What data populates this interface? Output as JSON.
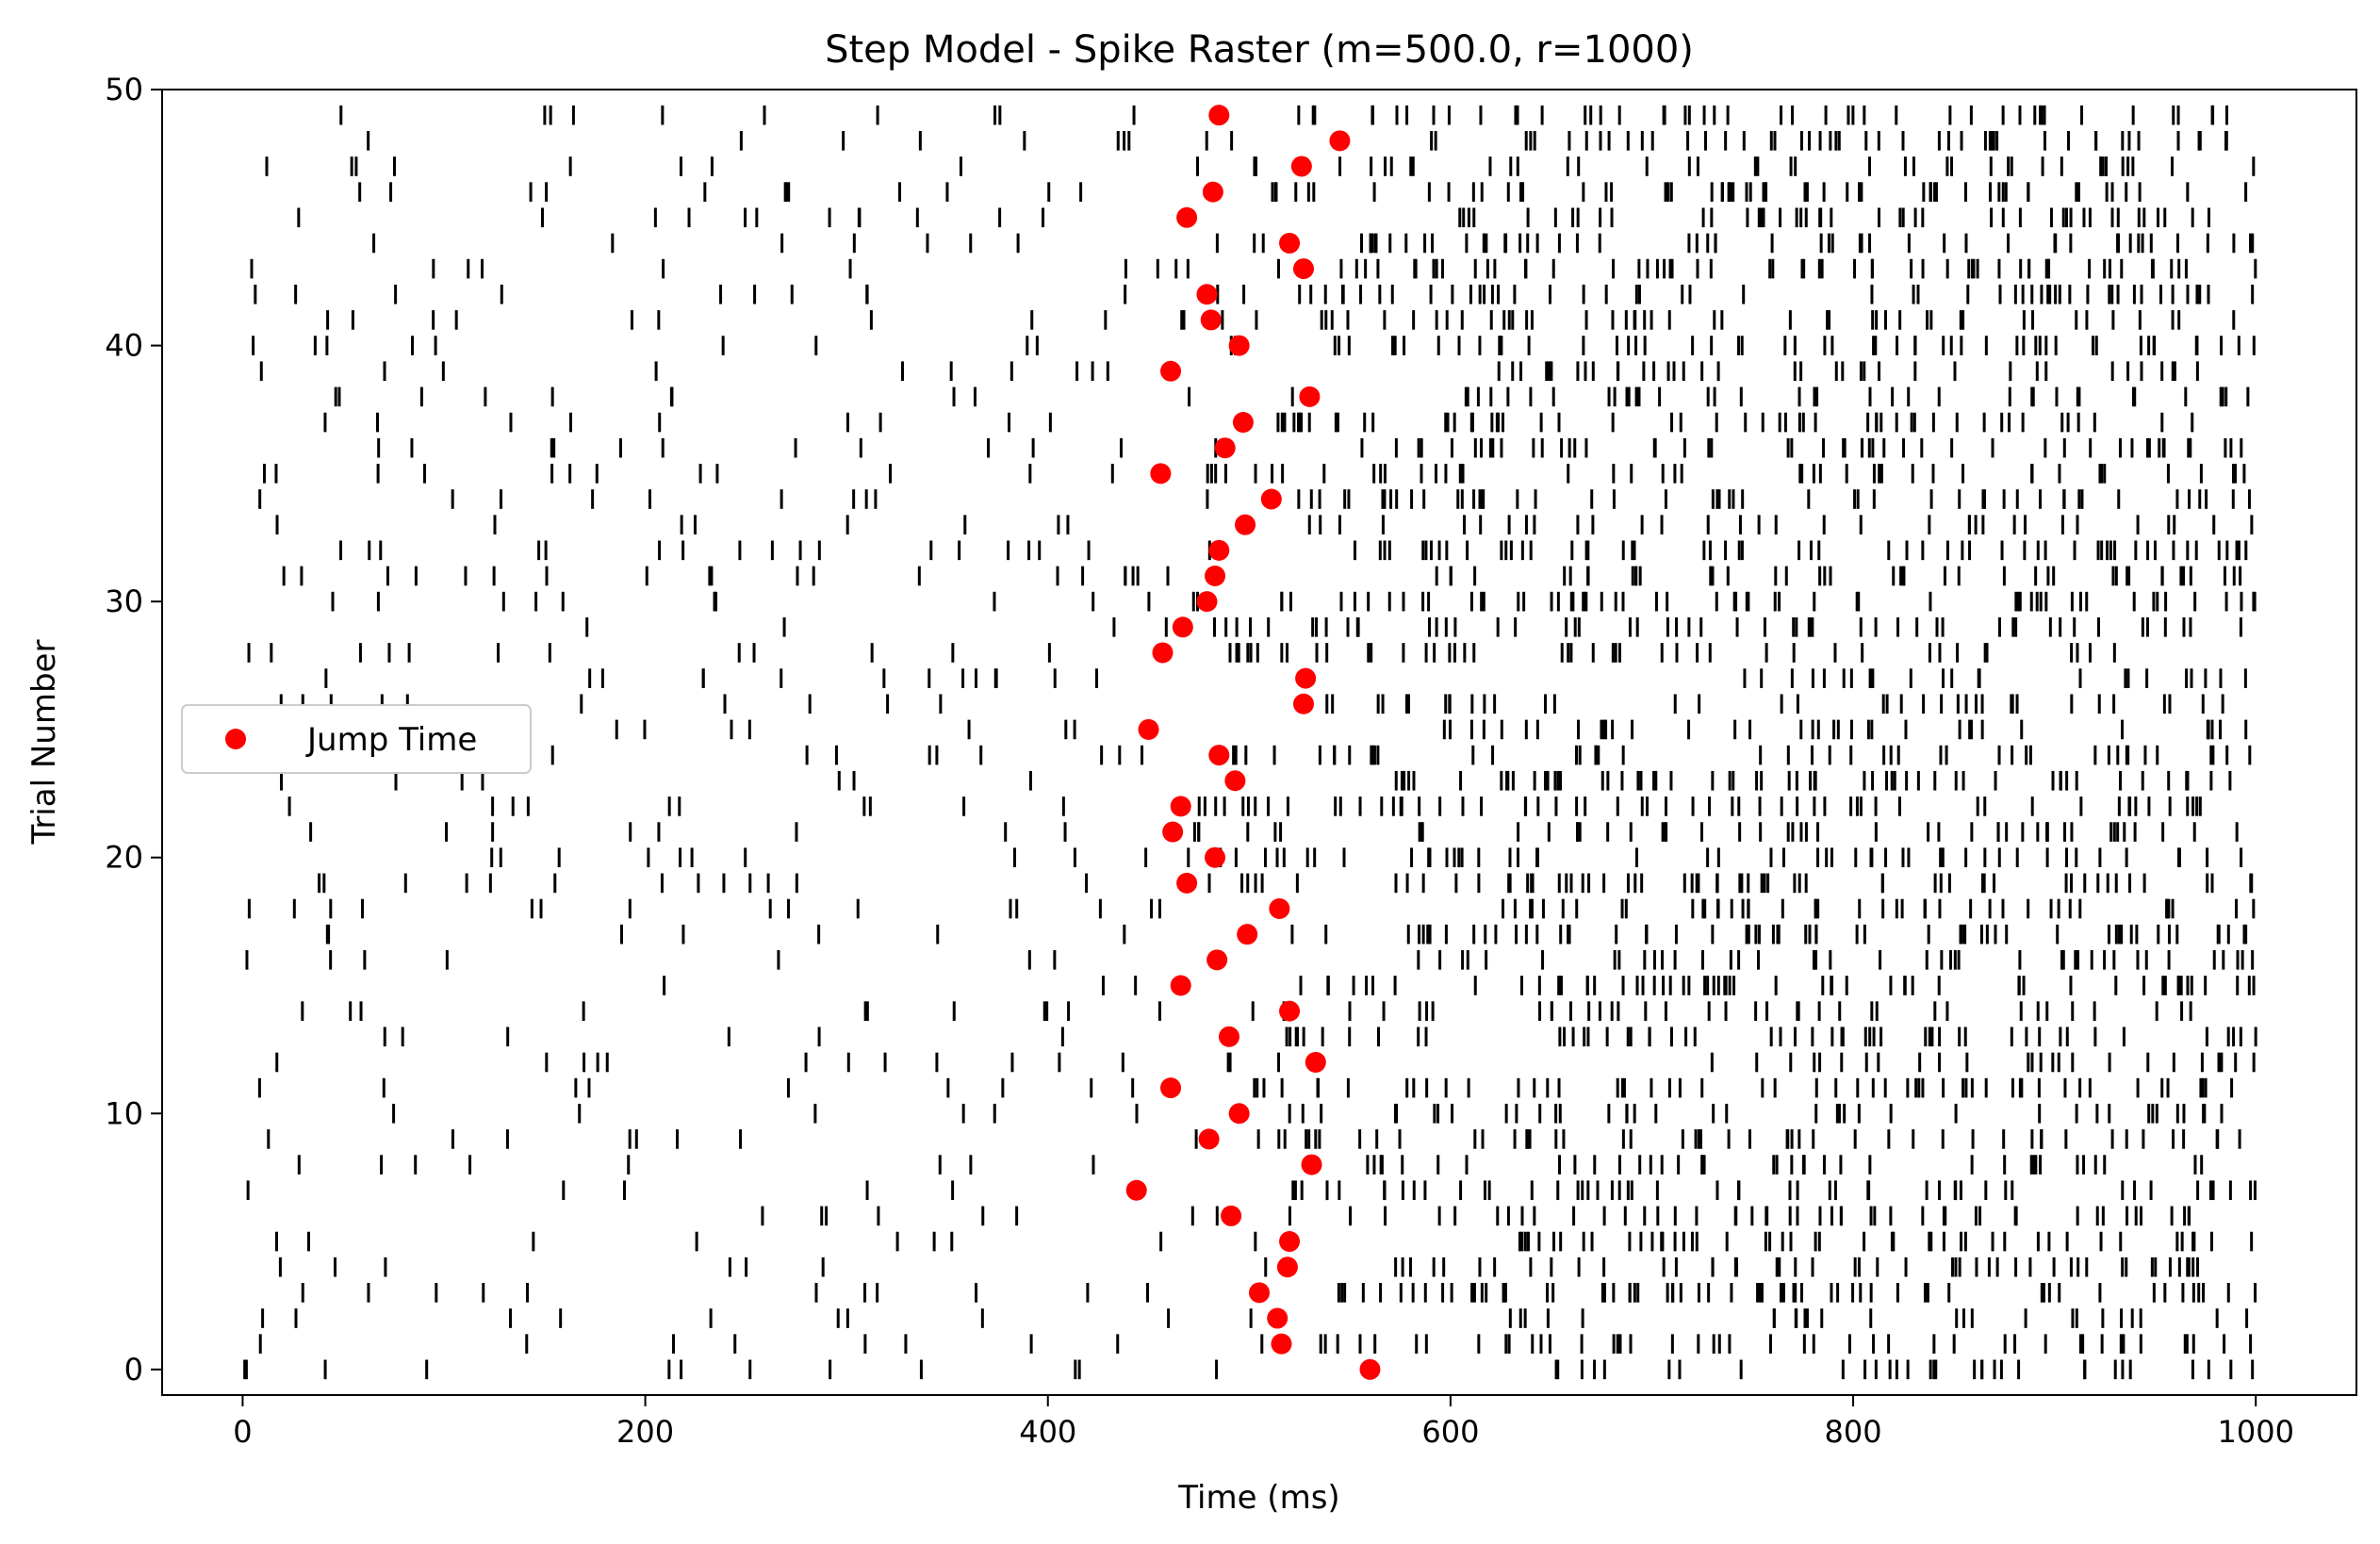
{
  "chart_data": {
    "type": "scatter",
    "title": "Step Model - Spike Raster (m=500.0, r=1000)",
    "xlabel": "Time (ms)",
    "ylabel": "Trial Number",
    "xlim": [
      -40,
      1050
    ],
    "ylim": [
      -1,
      50
    ],
    "xticks": [
      0,
      200,
      400,
      600,
      800,
      1000
    ],
    "yticks": [
      0,
      10,
      20,
      30,
      40,
      50
    ],
    "grid": false,
    "legend": {
      "placement": "center-left",
      "entries": [
        "Jump Time"
      ]
    },
    "colors": {
      "spikes": "#000000",
      "jump": "#ff0000"
    },
    "series": [
      {
        "name": "Jump Time",
        "type": "scatter",
        "x": [
          560,
          516,
          514,
          505,
          519,
          520,
          491,
          444,
          531,
          480,
          495,
          461,
          533,
          490,
          520,
          466,
          484,
          499,
          515,
          469,
          483,
          462,
          466,
          493,
          485,
          450,
          527,
          528,
          457,
          467,
          479,
          483,
          485,
          498,
          511,
          456,
          488,
          497,
          530,
          461,
          495,
          481,
          479,
          527,
          520,
          469,
          482,
          526,
          545,
          485
        ],
        "y": [
          0,
          1,
          2,
          3,
          4,
          5,
          6,
          7,
          8,
          9,
          10,
          11,
          12,
          13,
          14,
          15,
          16,
          17,
          18,
          19,
          20,
          21,
          22,
          23,
          24,
          25,
          26,
          27,
          28,
          29,
          30,
          31,
          32,
          33,
          34,
          35,
          36,
          37,
          38,
          39,
          40,
          41,
          42,
          43,
          44,
          45,
          46,
          47,
          48,
          49
        ]
      },
      {
        "name": "",
        "type": "raster",
        "baseline": {
          "rate_before": 20,
          "rate_after": 100,
          "t_end": 1000
        },
        "note": "Spike ticks are drawn per trial; before the jump time the trial fires sparsely, after the jump densely."
      }
    ]
  }
}
